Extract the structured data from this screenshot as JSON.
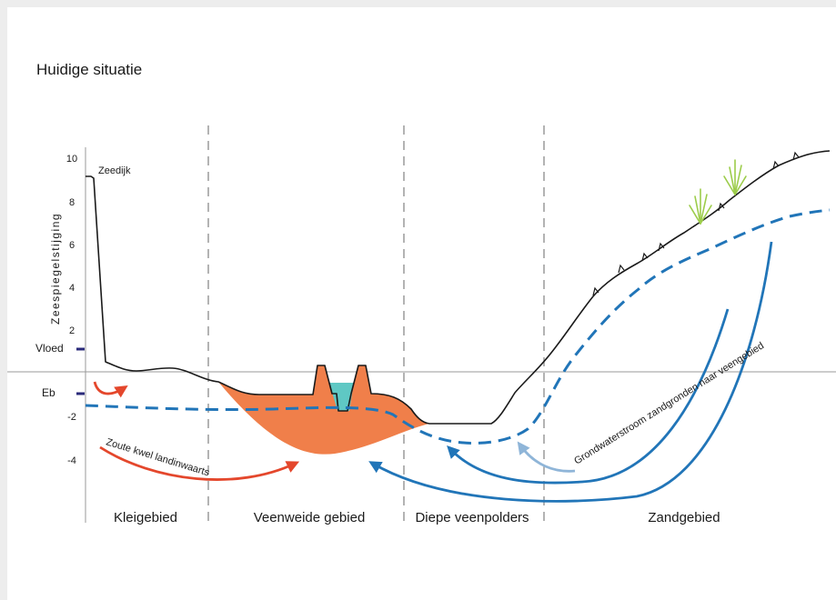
{
  "title": "Huidige situatie",
  "y_axis": {
    "label": "Zeespiegelstijging",
    "ticks": [
      "10",
      "8",
      "6",
      "4",
      "2",
      "-2",
      "-4"
    ]
  },
  "markers": {
    "vloed": "Vloed",
    "eb": "Eb"
  },
  "annotations": {
    "zeedijk": "Zeedijk",
    "zoute_kwel": "Zoute kwel landinwaarts",
    "grondwaterstroom": "Grondwaterstroom zandgronden naar veengebied"
  },
  "zones": [
    "Kleigebied",
    "Veenweide gebied",
    "Diepe veenpolders",
    "Zandgebied"
  ],
  "colors": {
    "peat": "#f07f4a",
    "ditch_water": "#5fc8c4",
    "groundwater": "#2175b8",
    "flow_light": "#8fb5d8",
    "salt_seepage": "#e4472c",
    "grass": "#9ccc4a",
    "marker": "#2a2a7a"
  }
}
